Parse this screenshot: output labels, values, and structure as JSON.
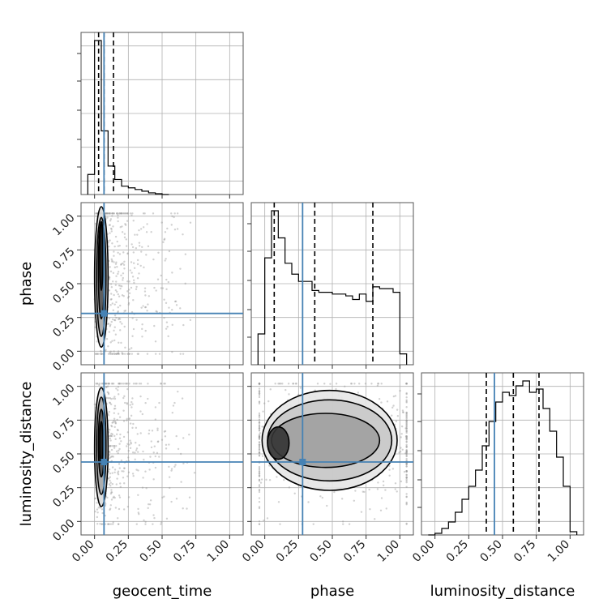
{
  "chart_data": {
    "type": "corner",
    "parameters": [
      "geocent_time",
      "phase",
      "luminosity_distance"
    ],
    "axis_labels": {
      "geocent_time": "geocent_time",
      "phase": "phase",
      "luminosity_distance": "luminosity_distance"
    },
    "tick_values": [
      0.0,
      0.25,
      0.5,
      0.75,
      1.0
    ],
    "tick_labels": [
      "0.00",
      "0.25",
      "0.50",
      "0.75",
      "1.00"
    ],
    "xlim": [
      -0.1,
      1.1
    ],
    "grid": true,
    "truth_values": {
      "geocent_time": 0.07,
      "phase": 0.28,
      "luminosity_distance": 0.44
    },
    "quantiles": {
      "geocent_time": [
        0.03,
        0.07,
        0.14
      ],
      "phase": [
        0.07,
        0.37,
        0.8
      ],
      "luminosity_distance": [
        0.38,
        0.58,
        0.77
      ]
    },
    "histograms": {
      "geocent_time": {
        "bin_edges": [
          -0.05,
          0.0,
          0.05,
          0.1,
          0.15,
          0.2,
          0.25,
          0.3,
          0.35,
          0.4,
          0.45,
          0.5,
          0.55
        ],
        "counts": [
          0.12,
          0.92,
          0.38,
          0.17,
          0.09,
          0.05,
          0.04,
          0.03,
          0.02,
          0.01,
          0.005,
          0.0
        ]
      },
      "phase": {
        "bin_edges": [
          -0.05,
          0.0,
          0.05,
          0.1,
          0.15,
          0.2,
          0.25,
          0.3,
          0.35,
          0.4,
          0.45,
          0.5,
          0.55,
          0.6,
          0.65,
          0.7,
          0.75,
          0.8,
          0.85,
          0.9,
          0.95,
          1.0,
          1.05
        ],
        "counts": [
          0.17,
          0.59,
          0.85,
          0.7,
          0.56,
          0.5,
          0.46,
          0.46,
          0.41,
          0.4,
          0.4,
          0.39,
          0.39,
          0.38,
          0.36,
          0.39,
          0.35,
          0.43,
          0.42,
          0.42,
          0.4,
          0.06
        ]
      },
      "luminosity_distance": {
        "bin_edges": [
          -0.05,
          0.0,
          0.05,
          0.1,
          0.15,
          0.2,
          0.25,
          0.3,
          0.35,
          0.4,
          0.45,
          0.5,
          0.55,
          0.6,
          0.65,
          0.7,
          0.75,
          0.8,
          0.85,
          0.9,
          0.95,
          1.0,
          1.05
        ],
        "counts": [
          0.0,
          0.01,
          0.04,
          0.08,
          0.14,
          0.22,
          0.3,
          0.4,
          0.55,
          0.7,
          0.82,
          0.88,
          0.86,
          0.92,
          0.95,
          0.88,
          0.9,
          0.78,
          0.64,
          0.48,
          0.3,
          0.02
        ]
      }
    },
    "contour_panels": [
      {
        "x": "geocent_time",
        "y": "phase",
        "levels": [
          {
            "center": [
              0.05,
              0.55
            ],
            "radius": [
              0.05,
              0.52
            ],
            "fill": "#dcdcdc"
          },
          {
            "center": [
              0.05,
              0.55
            ],
            "radius": [
              0.035,
              0.44
            ],
            "fill": "#a8a8a8"
          },
          {
            "center": [
              0.05,
              0.6
            ],
            "radius": [
              0.022,
              0.36
            ],
            "fill": "#555555"
          },
          {
            "center": [
              0.05,
              0.7
            ],
            "radius": [
              0.012,
              0.25
            ],
            "fill": "#1a1a1a"
          }
        ]
      },
      {
        "x": "geocent_time",
        "y": "luminosity_distance",
        "levels": [
          {
            "center": [
              0.05,
              0.55
            ],
            "radius": [
              0.05,
              0.44
            ],
            "fill": "#dcdcdc"
          },
          {
            "center": [
              0.05,
              0.56
            ],
            "radius": [
              0.035,
              0.36
            ],
            "fill": "#a8a8a8"
          },
          {
            "center": [
              0.05,
              0.58
            ],
            "radius": [
              0.022,
              0.25
            ],
            "fill": "#555555"
          },
          {
            "center": [
              0.05,
              0.58
            ],
            "radius": [
              0.012,
              0.16
            ],
            "fill": "#1a1a1a"
          }
        ]
      },
      {
        "x": "phase",
        "y": "luminosity_distance",
        "levels": [
          {
            "center": [
              0.48,
              0.6
            ],
            "radius": [
              0.5,
              0.37
            ],
            "fill": "#e6e6e6"
          },
          {
            "center": [
              0.48,
              0.6
            ],
            "radius": [
              0.46,
              0.3
            ],
            "fill": "#c8c8c8"
          },
          {
            "center": [
              0.45,
              0.6
            ],
            "radius": [
              0.4,
              0.2
            ],
            "fill": "#a0a0a0"
          },
          {
            "center": [
              0.1,
              0.58
            ],
            "radius": [
              0.08,
              0.12
            ],
            "fill": "#333333"
          }
        ]
      }
    ]
  }
}
